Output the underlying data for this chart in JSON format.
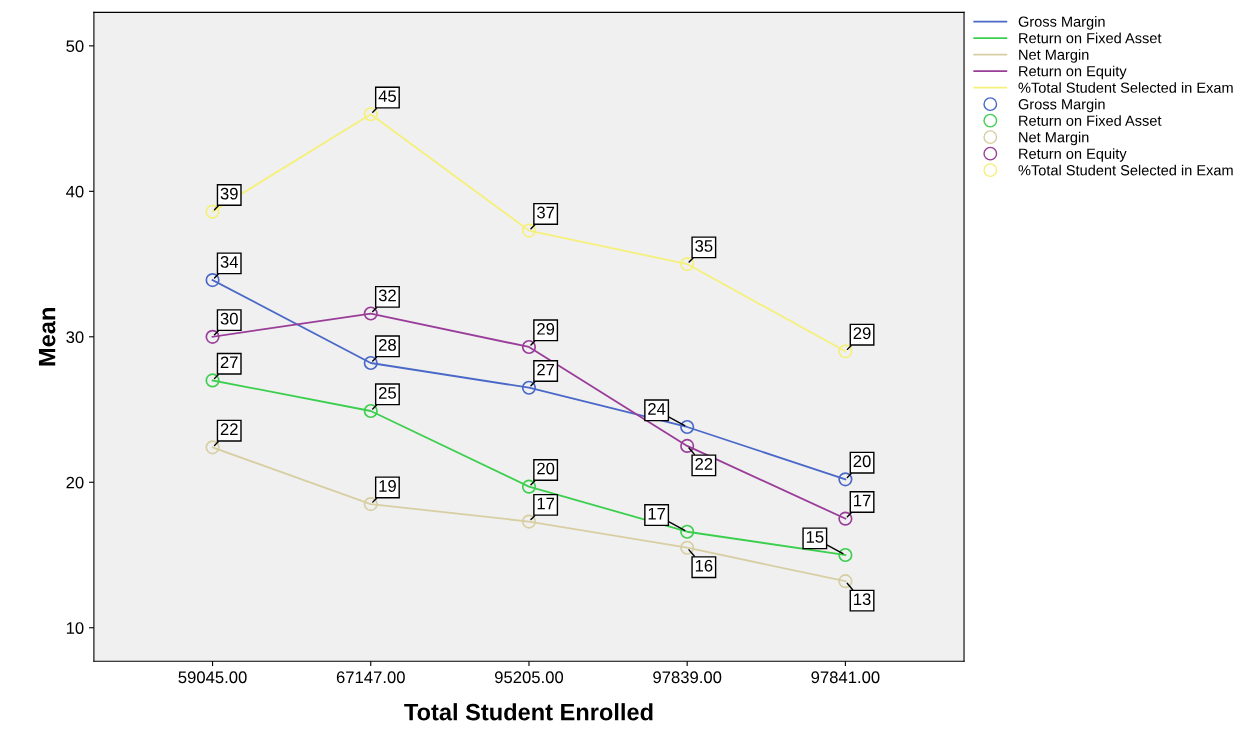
{
  "chart_data": {
    "type": "line",
    "xlabel": "Total Student Enrolled",
    "ylabel": "Mean",
    "categories": [
      "59045.00",
      "67147.00",
      "95205.00",
      "97839.00",
      "97841.00"
    ],
    "ylim": [
      7.7,
      52.3
    ],
    "yticks": [
      10,
      20,
      30,
      40,
      50
    ],
    "grid": false,
    "legend": "top right",
    "marker": "circle",
    "series": [
      {
        "name": "Gross Margin",
        "color": "#4a68c8",
        "values": [
          33.9,
          28.2,
          26.5,
          23.8,
          20.2
        ],
        "value_labels": [
          "34",
          "28",
          "27",
          "24",
          "20"
        ]
      },
      {
        "name": "Return on Fixed Asset",
        "color": "#3ccf4e",
        "values": [
          27.0,
          24.9,
          19.7,
          16.6,
          15.0
        ],
        "value_labels": [
          "27",
          "25",
          "20",
          "17",
          "15"
        ]
      },
      {
        "name": "Net Margin",
        "color": "#d7cfa3",
        "values": [
          22.4,
          18.5,
          17.3,
          15.5,
          13.2
        ],
        "value_labels": [
          "22",
          "19",
          "17",
          "16",
          "13"
        ]
      },
      {
        "name": "Return on Equity",
        "color": "#993d99",
        "values": [
          30.0,
          31.6,
          29.3,
          22.5,
          17.5
        ],
        "value_labels": [
          "30",
          "32",
          "29",
          "22",
          "17"
        ]
      },
      {
        "name": "%Total Student Selected in Exam",
        "color": "#f5f07a",
        "values": [
          38.6,
          45.3,
          37.3,
          35.0,
          29.0
        ],
        "value_labels": [
          "39",
          "45",
          "37",
          "35",
          "29"
        ]
      }
    ]
  }
}
